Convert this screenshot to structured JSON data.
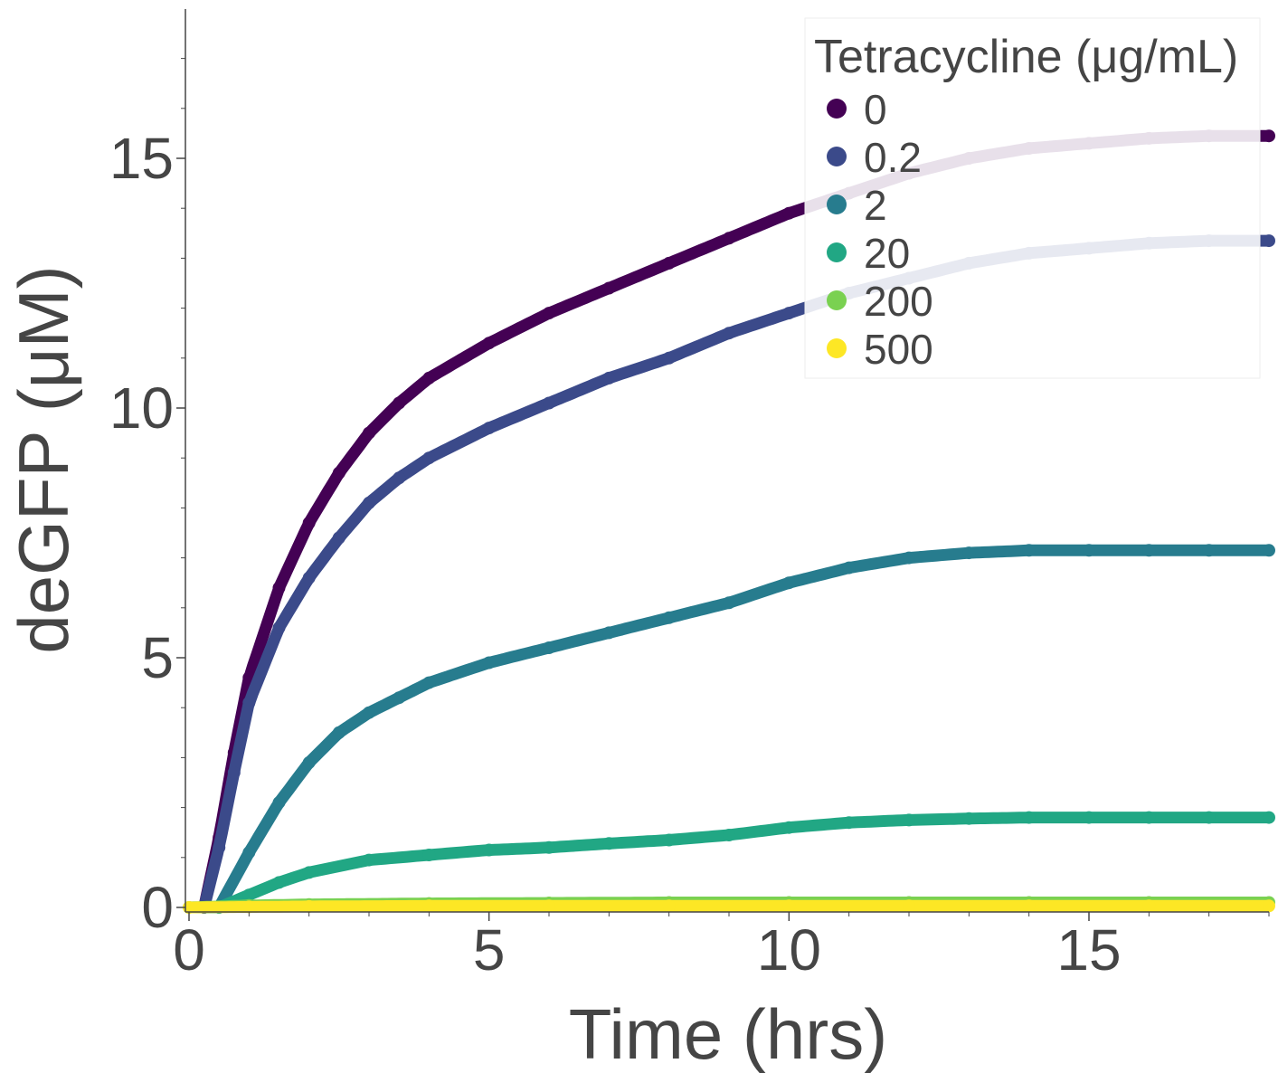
{
  "chart_data": {
    "type": "scatter",
    "xlabel": "Time (hrs)",
    "ylabel": "deGFP (μM)",
    "xlim": [
      0,
      18
    ],
    "ylim": [
      -0.1,
      18
    ],
    "x_ticks": [
      0,
      5,
      10,
      15
    ],
    "y_ticks": [
      0,
      5,
      10,
      15
    ],
    "grid": false,
    "legend": {
      "title": "Tetracycline (μg/mL)",
      "placement": "top-right"
    },
    "series": [
      {
        "name": "0",
        "color": "#440154",
        "x": [
          0.25,
          0.5,
          0.75,
          1.0,
          1.5,
          2.0,
          2.5,
          3.0,
          3.5,
          4.0,
          5.0,
          6.0,
          7.0,
          8.0,
          9.0,
          10.0,
          11.0,
          12.0,
          13.0,
          14.0,
          15.0,
          16.0,
          17.0,
          18.0
        ],
        "values": [
          0.0,
          1.4,
          3.1,
          4.6,
          6.4,
          7.7,
          8.7,
          9.5,
          10.1,
          10.6,
          11.3,
          11.9,
          12.4,
          12.9,
          13.4,
          13.9,
          14.3,
          14.7,
          15.0,
          15.2,
          15.3,
          15.4,
          15.45,
          15.45
        ]
      },
      {
        "name": "0.2",
        "color": "#3b4a8a",
        "x": [
          0.25,
          0.5,
          0.75,
          1.0,
          1.5,
          2.0,
          2.5,
          3.0,
          3.5,
          4.0,
          5.0,
          6.0,
          7.0,
          8.0,
          9.0,
          10.0,
          11.0,
          12.0,
          13.0,
          14.0,
          15.0,
          16.0,
          17.0,
          18.0
        ],
        "values": [
          0.0,
          1.2,
          2.7,
          4.1,
          5.6,
          6.6,
          7.4,
          8.1,
          8.6,
          9.0,
          9.6,
          10.1,
          10.6,
          11.0,
          11.5,
          11.9,
          12.3,
          12.6,
          12.9,
          13.1,
          13.2,
          13.3,
          13.35,
          13.35
        ]
      },
      {
        "name": "2",
        "color": "#277c8e",
        "x": [
          0.5,
          1.0,
          1.5,
          2.0,
          2.5,
          3.0,
          3.5,
          4.0,
          5.0,
          6.0,
          7.0,
          8.0,
          9.0,
          10.0,
          11.0,
          12.0,
          13.0,
          14.0,
          15.0,
          16.0,
          17.0,
          18.0
        ],
        "values": [
          0.0,
          1.1,
          2.1,
          2.9,
          3.5,
          3.9,
          4.2,
          4.5,
          4.9,
          5.2,
          5.5,
          5.8,
          6.1,
          6.5,
          6.8,
          7.0,
          7.1,
          7.15,
          7.15,
          7.15,
          7.15,
          7.15
        ]
      },
      {
        "name": "20",
        "color": "#21a784",
        "x": [
          0.5,
          1.0,
          1.5,
          2.0,
          3.0,
          4.0,
          5.0,
          6.0,
          7.0,
          8.0,
          9.0,
          10.0,
          11.0,
          12.0,
          13.0,
          14.0,
          15.0,
          16.0,
          17.0,
          18.0
        ],
        "values": [
          0.0,
          0.25,
          0.5,
          0.7,
          0.95,
          1.05,
          1.15,
          1.2,
          1.28,
          1.35,
          1.45,
          1.6,
          1.7,
          1.75,
          1.78,
          1.8,
          1.8,
          1.8,
          1.8,
          1.8
        ]
      },
      {
        "name": "200",
        "color": "#7ad151",
        "x": [
          0,
          1,
          2,
          4,
          6,
          8,
          10,
          12,
          14,
          16,
          18
        ],
        "values": [
          0.0,
          0.04,
          0.06,
          0.08,
          0.09,
          0.1,
          0.1,
          0.1,
          0.1,
          0.1,
          0.1
        ]
      },
      {
        "name": "500",
        "color": "#fde725",
        "x": [
          0,
          1,
          2,
          4,
          6,
          8,
          10,
          12,
          14,
          16,
          18
        ],
        "values": [
          0.0,
          0.01,
          0.02,
          0.03,
          0.03,
          0.03,
          0.03,
          0.03,
          0.03,
          0.03,
          0.03
        ]
      }
    ]
  }
}
